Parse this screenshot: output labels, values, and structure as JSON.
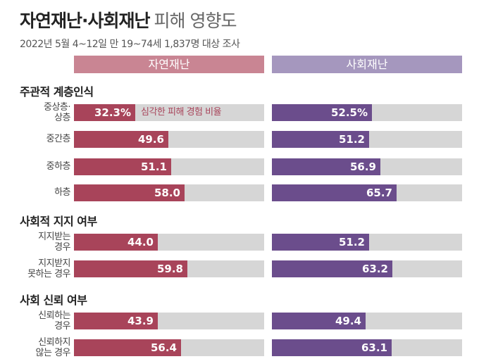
{
  "title": {
    "bold": "자연재난·사회재난",
    "light": "피해 영향도"
  },
  "subtitle": "2022년 5월 4~12일 만 19~74세 1,837명 대상 조사",
  "colors": {
    "natural": "#a8445a",
    "social": "#6b4d8c",
    "track": "#d6d6d6"
  },
  "chart_data": {
    "type": "bar",
    "series": [
      {
        "name": "자연재난",
        "values": [
          32.3,
          49.6,
          51.1,
          58.0,
          44.0,
          59.8,
          43.9,
          56.4
        ]
      },
      {
        "name": "사회재난",
        "values": [
          52.5,
          51.2,
          56.9,
          65.7,
          51.2,
          63.2,
          49.4,
          63.1
        ]
      }
    ],
    "xlim": [
      0,
      100
    ],
    "annotation": "심각한 피해 경험 비율",
    "groups": [
      {
        "title": "주관적 계층인식",
        "rows": [
          {
            "label1": "중상층·",
            "label2": "상층",
            "natural": 32.3,
            "natural_text": "32.3%",
            "social": 52.5,
            "social_text": "52.5%"
          },
          {
            "label1": "중간층",
            "label2": "",
            "natural": 49.6,
            "natural_text": "49.6",
            "social": 51.2,
            "social_text": "51.2"
          },
          {
            "label1": "중하층",
            "label2": "",
            "natural": 51.1,
            "natural_text": "51.1",
            "social": 56.9,
            "social_text": "56.9"
          },
          {
            "label1": "하층",
            "label2": "",
            "natural": 58.0,
            "natural_text": "58.0",
            "social": 65.7,
            "social_text": "65.7"
          }
        ]
      },
      {
        "title": "사회적 지지 여부",
        "rows": [
          {
            "label1": "지지받는",
            "label2": "경우",
            "natural": 44.0,
            "natural_text": "44.0",
            "social": 51.2,
            "social_text": "51.2"
          },
          {
            "label1": "지지받지",
            "label2": "못하는 경우",
            "natural": 59.8,
            "natural_text": "59.8",
            "social": 63.2,
            "social_text": "63.2"
          }
        ]
      },
      {
        "title": "사회 신뢰 여부",
        "rows": [
          {
            "label1": "신뢰하는",
            "label2": "경우",
            "natural": 43.9,
            "natural_text": "43.9",
            "social": 49.4,
            "social_text": "49.4"
          },
          {
            "label1": "신뢰하지",
            "label2": "않는 경우",
            "natural": 56.4,
            "natural_text": "56.4",
            "social": 63.1,
            "social_text": "63.1"
          }
        ]
      }
    ]
  }
}
